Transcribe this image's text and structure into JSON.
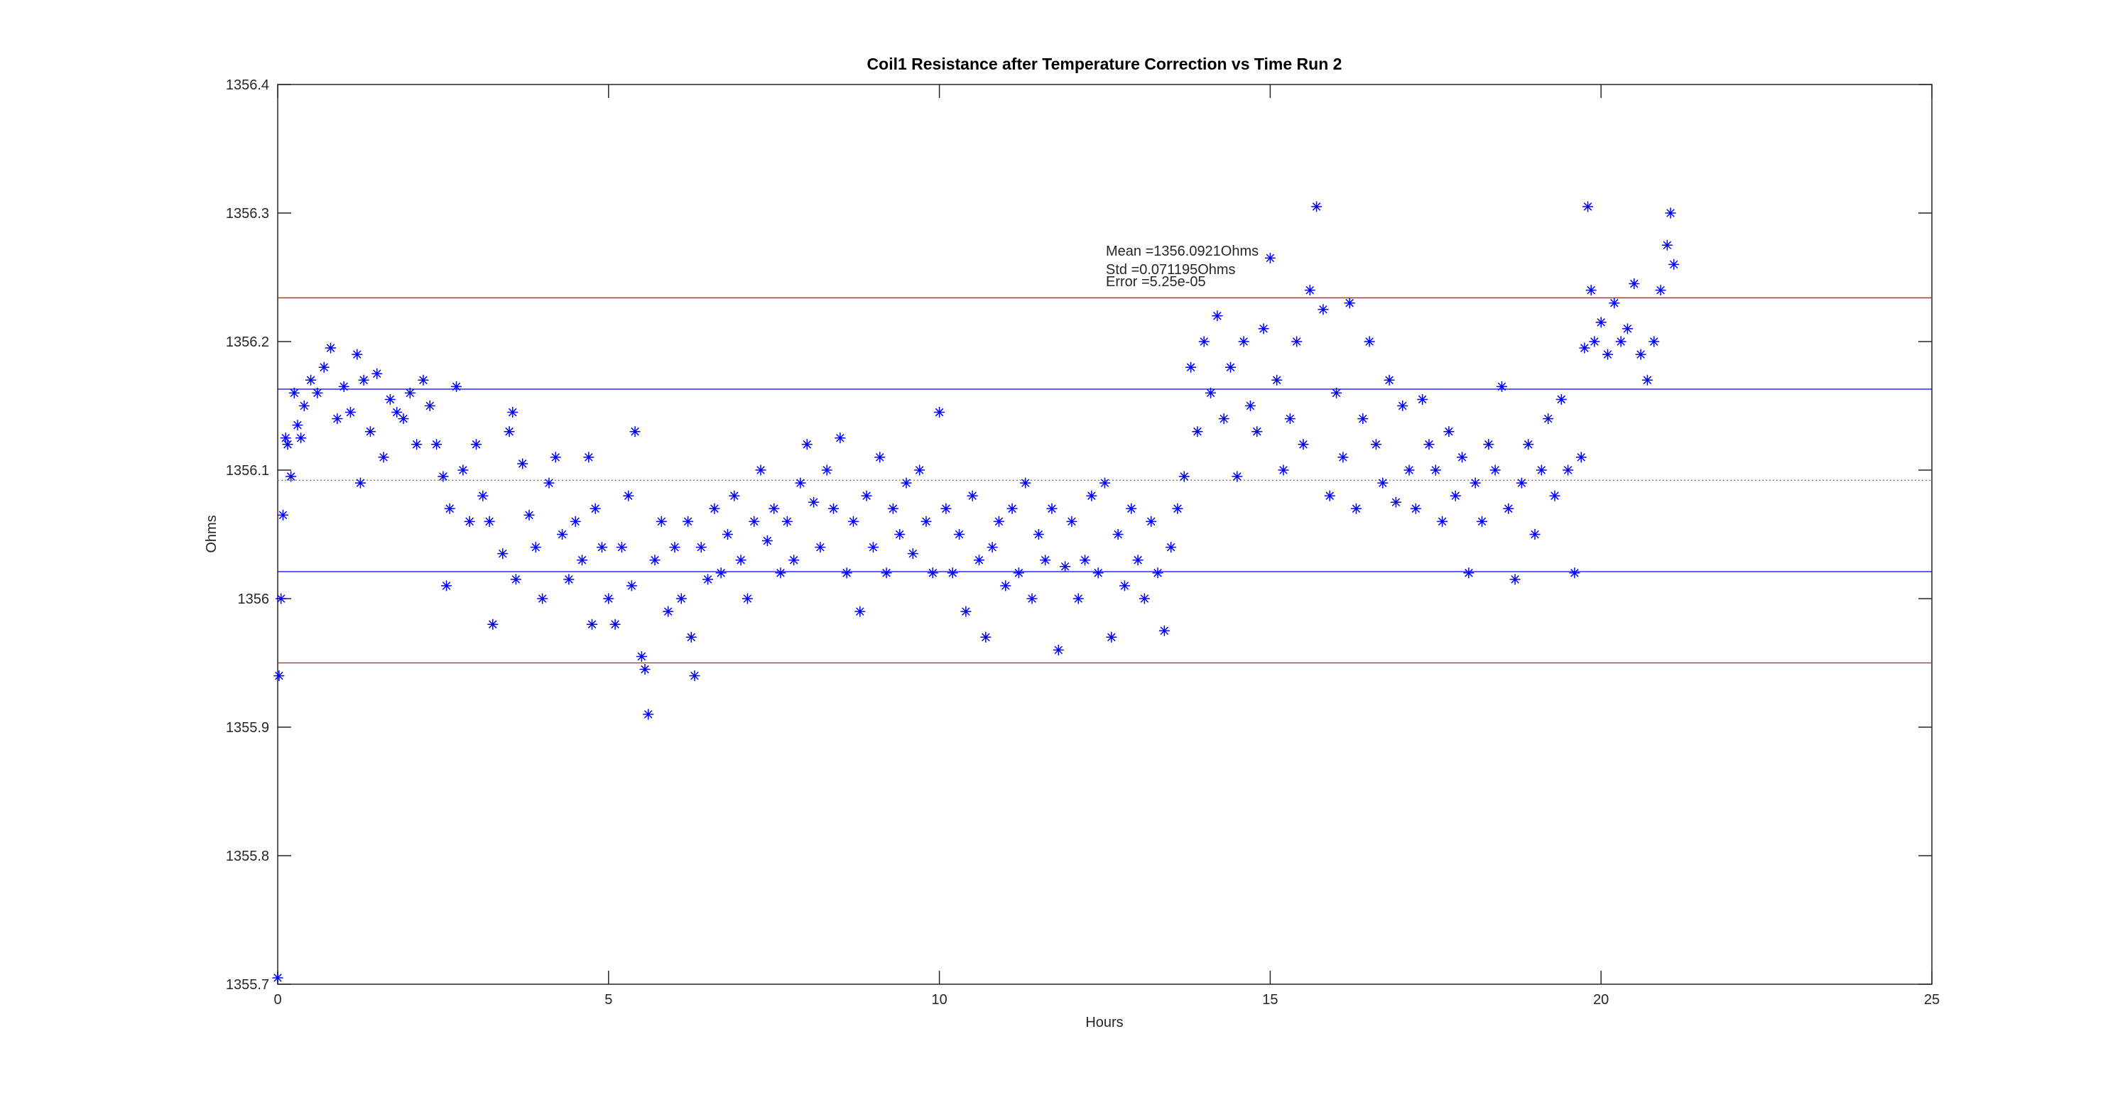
{
  "chart_data": {
    "type": "scatter",
    "title": "Coil1 Resistance after Temperature Correction vs Time Run 2",
    "x_label": "Hours",
    "y_label": "Ohms",
    "xlim": [
      0,
      25
    ],
    "xticks": [
      0,
      5,
      10,
      15,
      20,
      25
    ],
    "ylim": [
      1355.7,
      1356.4
    ],
    "yticks": [
      1355.7,
      1355.8,
      1355.9,
      1356,
      1356.1,
      1356.2,
      1356.3,
      1356.4
    ],
    "color": "#0000ff",
    "marker": "asterisk",
    "hlines": [
      {
        "value": 1356.0921,
        "color": "#808080",
        "style": "dotted"
      },
      {
        "value": 1356.163,
        "color": "#0000ff",
        "style": "solid"
      },
      {
        "value": 1356.021,
        "color": "#0000ff",
        "style": "solid"
      },
      {
        "value": 1356.234,
        "color": "#ff0000",
        "style": "solid"
      },
      {
        "value": 1355.95,
        "color": "#ff0000",
        "style": "solid"
      }
    ],
    "annotations": [
      "Mean =1356.0921Ohms",
      "Std =0.071195Ohms",
      "Error =5.25e-05"
    ],
    "x": [
      0,
      0.02,
      0.05,
      0.08,
      0.12,
      0.15,
      0.2,
      0.25,
      0.3,
      0.35,
      0.4,
      0.5,
      0.6,
      0.7,
      0.8,
      0.9,
      1.0,
      1.1,
      1.2,
      1.25,
      1.3,
      1.4,
      1.5,
      1.6,
      1.7,
      1.8,
      1.9,
      2.0,
      2.1,
      2.2,
      2.3,
      2.4,
      2.5,
      2.55,
      2.6,
      2.7,
      2.8,
      2.9,
      3.0,
      3.1,
      3.2,
      3.25,
      3.4,
      3.5,
      3.55,
      3.6,
      3.7,
      3.8,
      3.9,
      4.0,
      4.1,
      4.2,
      4.3,
      4.4,
      4.5,
      4.6,
      4.7,
      4.75,
      4.8,
      4.9,
      5.0,
      5.1,
      5.2,
      5.3,
      5.35,
      5.4,
      5.5,
      5.55,
      5.6,
      5.7,
      5.8,
      5.9,
      6.0,
      6.1,
      6.2,
      6.25,
      6.3,
      6.4,
      6.5,
      6.6,
      6.7,
      6.8,
      6.9,
      7.0,
      7.1,
      7.2,
      7.3,
      7.4,
      7.5,
      7.6,
      7.7,
      7.8,
      7.9,
      8.0,
      8.1,
      8.2,
      8.3,
      8.4,
      8.5,
      8.6,
      8.7,
      8.8,
      8.9,
      9.0,
      9.1,
      9.2,
      9.3,
      9.4,
      9.5,
      9.6,
      9.7,
      9.8,
      9.9,
      10.0,
      10.1,
      10.2,
      10.3,
      10.4,
      10.5,
      10.6,
      10.7,
      10.8,
      10.9,
      11.0,
      11.1,
      11.2,
      11.3,
      11.4,
      11.5,
      11.6,
      11.7,
      11.8,
      11.9,
      12.0,
      12.1,
      12.2,
      12.3,
      12.4,
      12.5,
      12.6,
      12.7,
      12.8,
      12.9,
      13.0,
      13.1,
      13.2,
      13.3,
      13.4,
      13.5,
      13.6,
      13.7,
      13.8,
      13.9,
      14.0,
      14.1,
      14.2,
      14.3,
      14.4,
      14.5,
      14.6,
      14.7,
      14.8,
      14.9,
      15.0,
      15.1,
      15.2,
      15.3,
      15.4,
      15.5,
      15.6,
      15.7,
      15.8,
      15.9,
      16.0,
      16.1,
      16.2,
      16.3,
      16.4,
      16.5,
      16.6,
      16.7,
      16.8,
      16.9,
      17.0,
      17.1,
      17.2,
      17.3,
      17.4,
      17.5,
      17.6,
      17.7,
      17.8,
      17.9,
      18.0,
      18.1,
      18.2,
      18.3,
      18.4,
      18.5,
      18.6,
      18.7,
      18.8,
      18.9,
      19.0,
      19.1,
      19.2,
      19.3,
      19.4,
      19.5,
      19.6,
      19.7,
      19.75,
      19.8,
      19.85,
      19.9,
      20.0,
      20.1,
      20.2,
      20.3,
      20.4,
      20.5,
      20.6,
      20.7,
      20.8,
      20.9,
      21.0,
      21.05,
      21.1
    ],
    "values": [
      1355.705,
      1355.94,
      1356.0,
      1356.065,
      1356.125,
      1356.12,
      1356.095,
      1356.16,
      1356.135,
      1356.125,
      1356.15,
      1356.17,
      1356.16,
      1356.18,
      1356.195,
      1356.14,
      1356.165,
      1356.145,
      1356.19,
      1356.09,
      1356.17,
      1356.13,
      1356.175,
      1356.11,
      1356.155,
      1356.145,
      1356.14,
      1356.16,
      1356.12,
      1356.17,
      1356.15,
      1356.12,
      1356.095,
      1356.01,
      1356.07,
      1356.165,
      1356.1,
      1356.06,
      1356.12,
      1356.08,
      1356.06,
      1355.98,
      1356.035,
      1356.13,
      1356.145,
      1356.015,
      1356.105,
      1356.065,
      1356.04,
      1356.0,
      1356.09,
      1356.11,
      1356.05,
      1356.015,
      1356.06,
      1356.03,
      1356.11,
      1355.98,
      1356.07,
      1356.04,
      1356.0,
      1355.98,
      1356.04,
      1356.08,
      1356.01,
      1356.13,
      1355.955,
      1355.945,
      1355.91,
      1356.03,
      1356.06,
      1355.99,
      1356.04,
      1356.0,
      1356.06,
      1355.97,
      1355.94,
      1356.04,
      1356.015,
      1356.07,
      1356.02,
      1356.05,
      1356.08,
      1356.03,
      1356.0,
      1356.06,
      1356.1,
      1356.045,
      1356.07,
      1356.02,
      1356.06,
      1356.03,
      1356.09,
      1356.12,
      1356.075,
      1356.04,
      1356.1,
      1356.07,
      1356.125,
      1356.02,
      1356.06,
      1355.99,
      1356.08,
      1356.04,
      1356.11,
      1356.02,
      1356.07,
      1356.05,
      1356.09,
      1356.035,
      1356.1,
      1356.06,
      1356.02,
      1356.145,
      1356.07,
      1356.02,
      1356.05,
      1355.99,
      1356.08,
      1356.03,
      1355.97,
      1356.04,
      1356.06,
      1356.01,
      1356.07,
      1356.02,
      1356.09,
      1356.0,
      1356.05,
      1356.03,
      1356.07,
      1355.96,
      1356.025,
      1356.06,
      1356.0,
      1356.03,
      1356.08,
      1356.02,
      1356.09,
      1355.97,
      1356.05,
      1356.01,
      1356.07,
      1356.03,
      1356.0,
      1356.06,
      1356.02,
      1355.975,
      1356.04,
      1356.07,
      1356.095,
      1356.18,
      1356.13,
      1356.2,
      1356.16,
      1356.22,
      1356.14,
      1356.18,
      1356.095,
      1356.2,
      1356.15,
      1356.13,
      1356.21,
      1356.265,
      1356.17,
      1356.1,
      1356.14,
      1356.2,
      1356.12,
      1356.24,
      1356.305,
      1356.225,
      1356.08,
      1356.16,
      1356.11,
      1356.23,
      1356.07,
      1356.14,
      1356.2,
      1356.12,
      1356.09,
      1356.17,
      1356.075,
      1356.15,
      1356.1,
      1356.07,
      1356.155,
      1356.12,
      1356.1,
      1356.06,
      1356.13,
      1356.08,
      1356.11,
      1356.02,
      1356.09,
      1356.06,
      1356.12,
      1356.1,
      1356.165,
      1356.07,
      1356.015,
      1356.09,
      1356.12,
      1356.05,
      1356.1,
      1356.14,
      1356.08,
      1356.155,
      1356.1,
      1356.02,
      1356.11,
      1356.195,
      1356.305,
      1356.24,
      1356.2,
      1356.215,
      1356.19,
      1356.23,
      1356.2,
      1356.21,
      1356.245,
      1356.19,
      1356.17,
      1356.2,
      1356.24,
      1356.275,
      1356.3,
      1356.26
    ]
  }
}
